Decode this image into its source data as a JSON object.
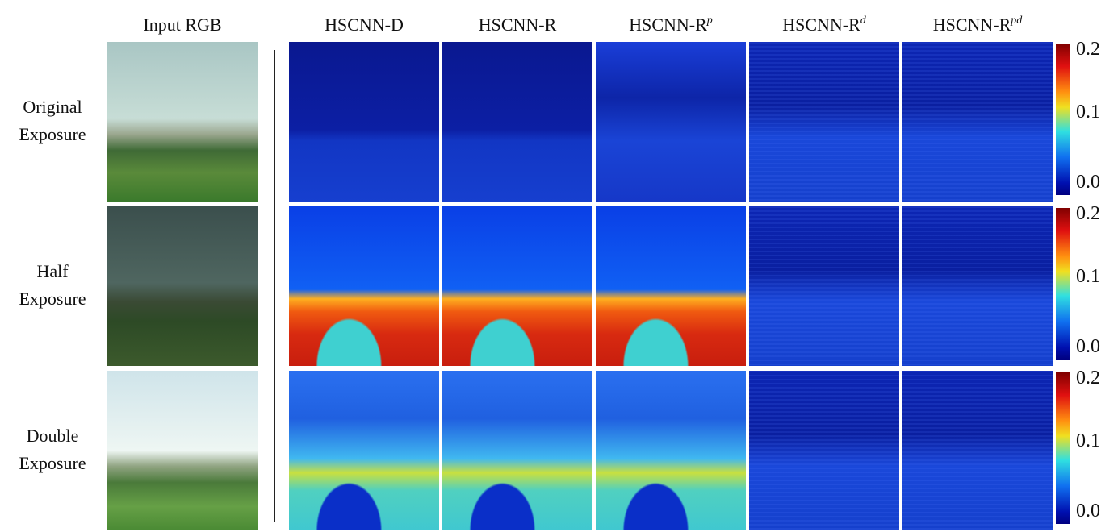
{
  "columns": {
    "input": "Input RGB",
    "methods": [
      {
        "name": "HSCNN-D"
      },
      {
        "name": "HSCNN-R"
      },
      {
        "name": "HSCNN-R",
        "sup": "p"
      },
      {
        "name": "HSCNN-R",
        "sup": "d"
      },
      {
        "name": "HSCNN-R",
        "sup": "pd"
      }
    ]
  },
  "rows": [
    {
      "label": [
        "Original",
        "Exposure"
      ]
    },
    {
      "label": [
        "Half",
        "Exposure"
      ]
    },
    {
      "label": [
        "Double",
        "Exposure"
      ]
    }
  ],
  "colorbar": {
    "ticks": [
      "0.2",
      "0.1",
      "0.0"
    ]
  }
}
